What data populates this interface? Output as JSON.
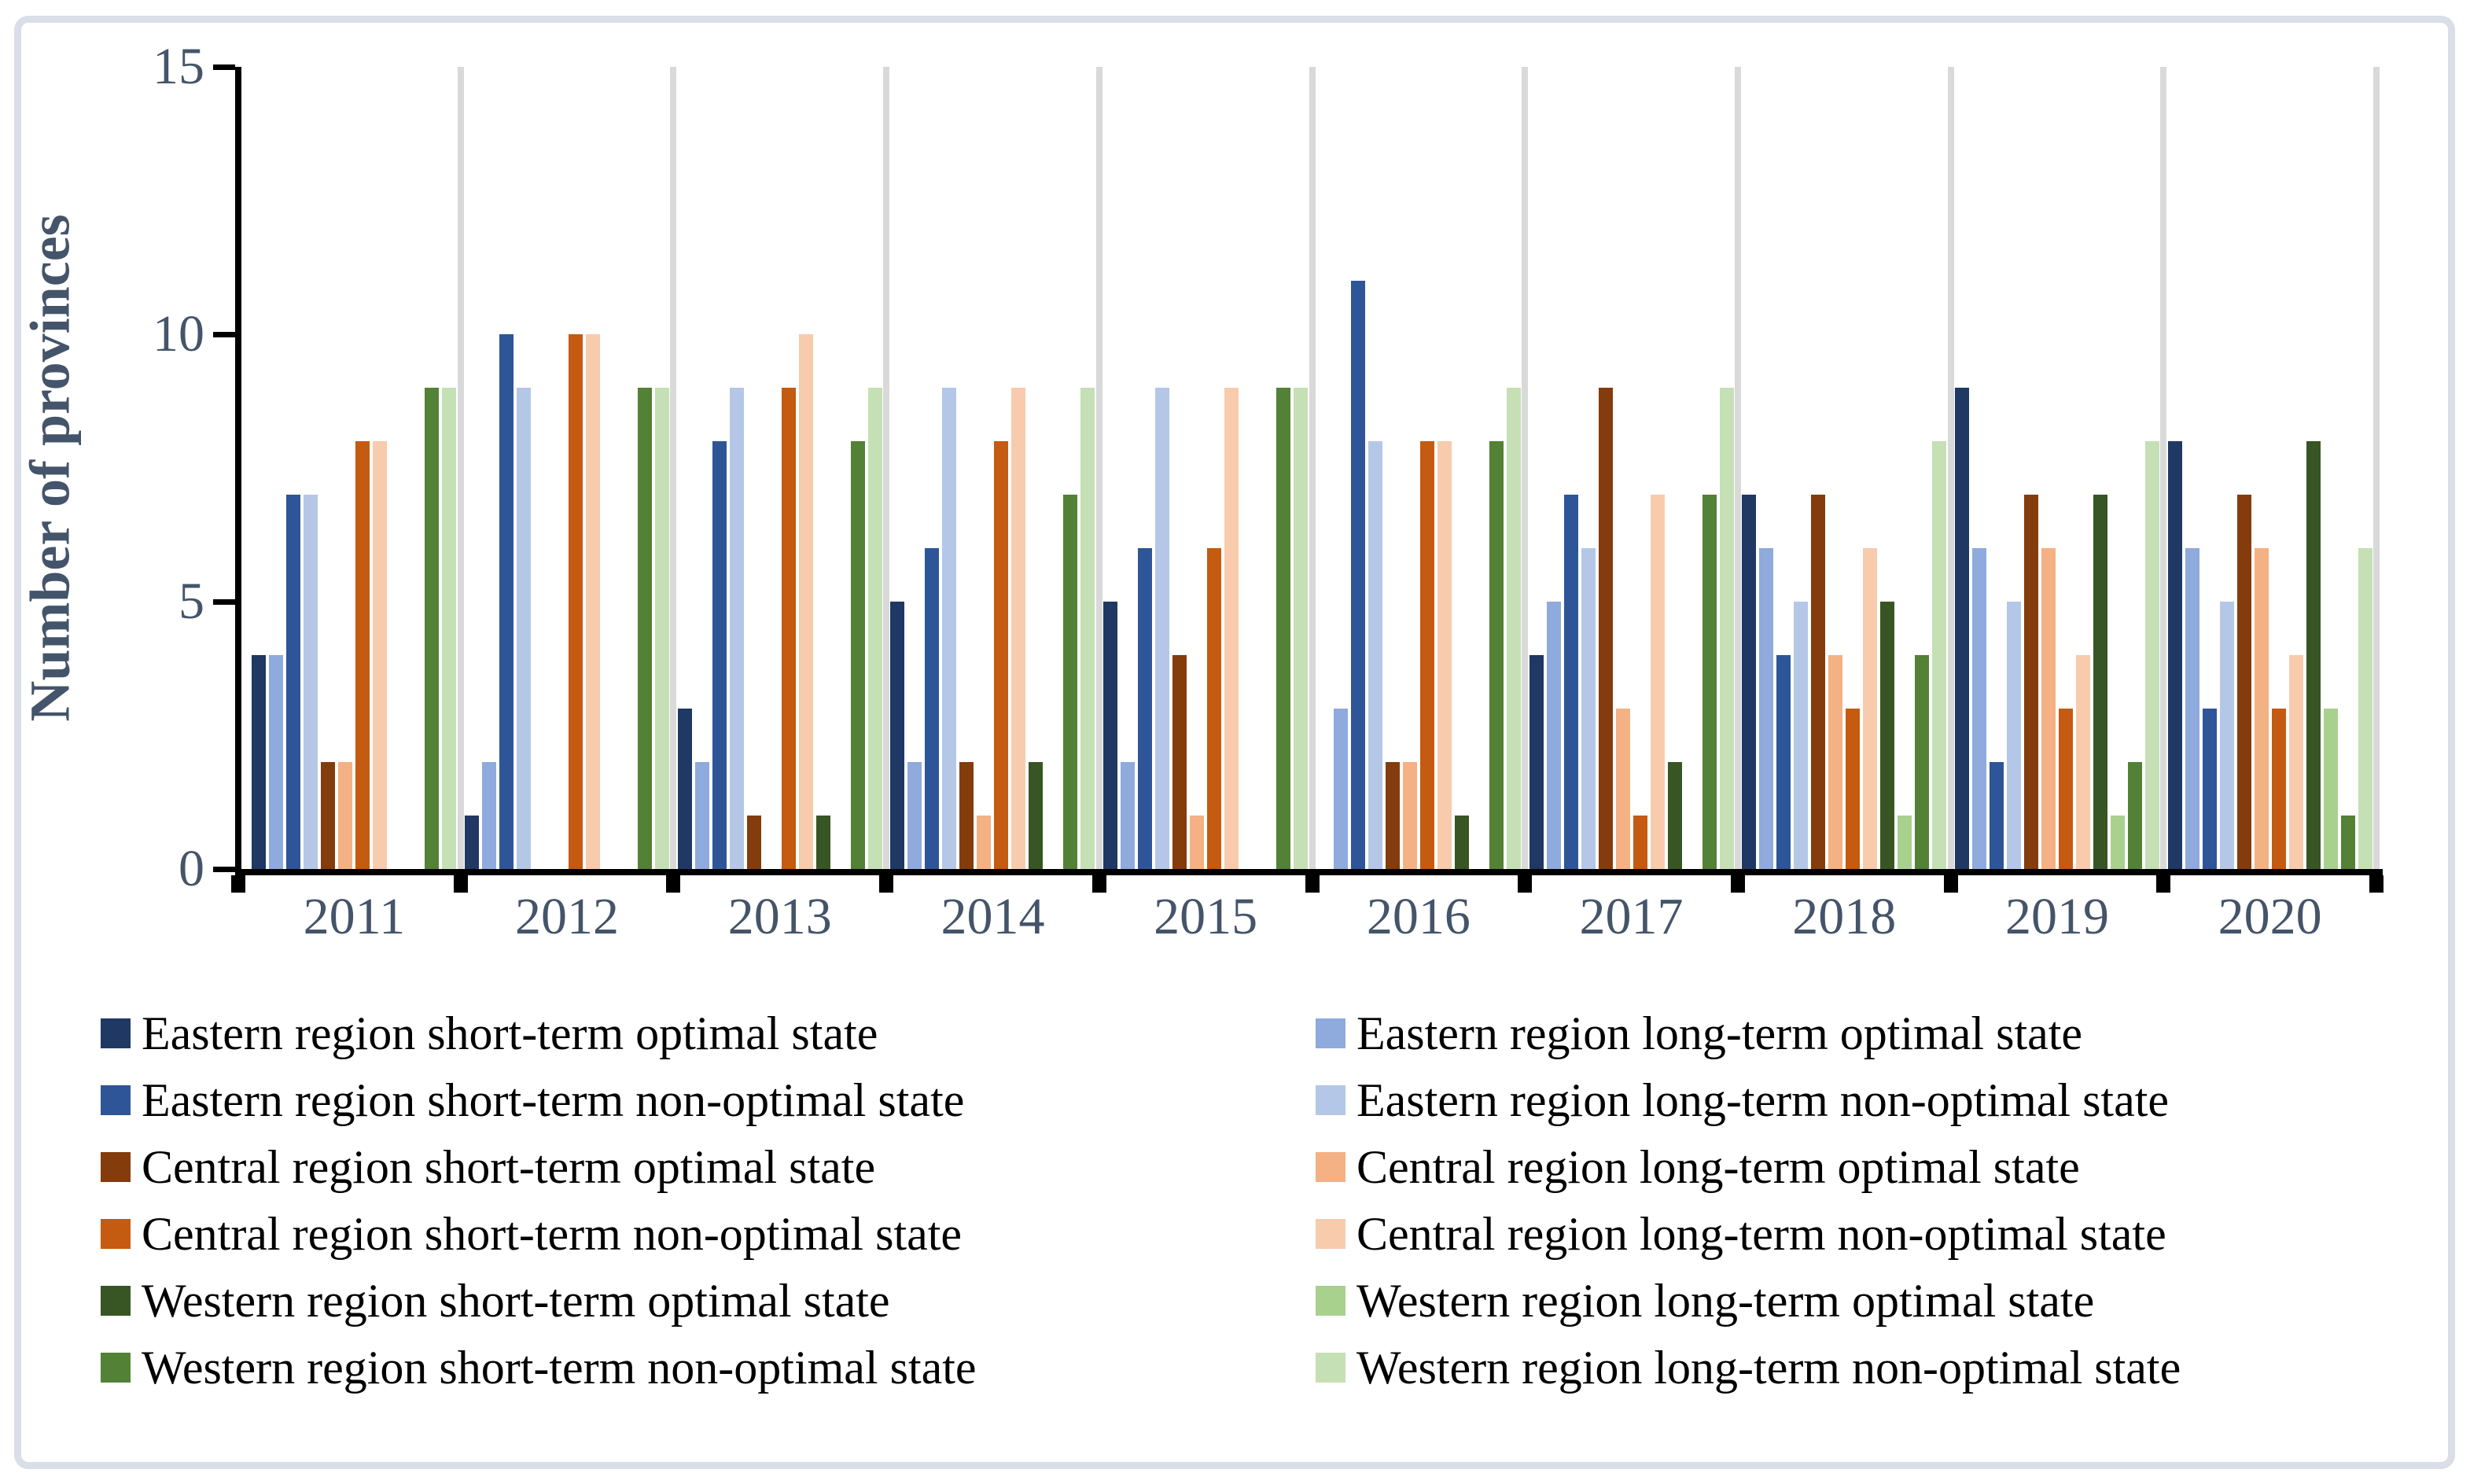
{
  "chart_data": {
    "type": "bar",
    "title": "",
    "ylabel": "Number of provinces",
    "xlabel": "",
    "ylim": [
      0,
      15
    ],
    "yticks": [
      0,
      5,
      10,
      15
    ],
    "grid": "vertical separators between year groups",
    "legend_position": "bottom, two columns",
    "categories": [
      "2011",
      "2012",
      "2013",
      "2014",
      "2015",
      "2016",
      "2017",
      "2018",
      "2019",
      "2020"
    ],
    "series": [
      {
        "name": "Eastern region short-term optimal state",
        "color": "#1F3864",
        "values": [
          4,
          1,
          3,
          5,
          5,
          0,
          4,
          7,
          9,
          8
        ]
      },
      {
        "name": "Eastern region long-term optimal state",
        "color": "#8FAADC",
        "values": [
          4,
          2,
          2,
          2,
          2,
          3,
          5,
          6,
          6,
          6
        ]
      },
      {
        "name": "Eastern region short-term non-optimal state",
        "color": "#2E5597",
        "values": [
          7,
          10,
          8,
          6,
          6,
          11,
          7,
          4,
          2,
          3
        ]
      },
      {
        "name": "Eastern region long-term non-optimal state",
        "color": "#B4C7E7",
        "values": [
          7,
          9,
          9,
          9,
          9,
          8,
          6,
          5,
          5,
          5
        ]
      },
      {
        "name": "Central region short-term optimal state",
        "color": "#843C0C",
        "values": [
          2,
          0,
          1,
          2,
          4,
          2,
          9,
          7,
          7,
          7
        ]
      },
      {
        "name": "Central region long-term optimal state",
        "color": "#F4B183",
        "values": [
          2,
          0,
          0,
          1,
          1,
          2,
          3,
          4,
          6,
          6
        ]
      },
      {
        "name": "Central region short-term non-optimal state",
        "color": "#C55A11",
        "values": [
          8,
          10,
          9,
          8,
          6,
          8,
          1,
          3,
          3,
          3
        ]
      },
      {
        "name": "Central region long-term non-optimal state",
        "color": "#F8CBAD",
        "values": [
          8,
          10,
          10,
          9,
          9,
          8,
          7,
          6,
          4,
          4
        ]
      },
      {
        "name": "Western region short-term optimal state",
        "color": "#375623",
        "values": [
          0,
          0,
          1,
          2,
          0,
          1,
          2,
          5,
          7,
          8
        ]
      },
      {
        "name": "Western region long-term optimal state",
        "color": "#A9D18E",
        "values": [
          0,
          0,
          0,
          0,
          0,
          0,
          0,
          1,
          1,
          3
        ]
      },
      {
        "name": "Western region short-term non-optimal state",
        "color": "#538135",
        "values": [
          9,
          9,
          8,
          7,
          9,
          8,
          7,
          4,
          2,
          1
        ]
      },
      {
        "name": "Western region long-term non-optimal state",
        "color": "#C5E0B4",
        "values": [
          9,
          9,
          9,
          9,
          9,
          9,
          9,
          8,
          8,
          6
        ]
      }
    ],
    "legend_columns": {
      "left": [
        0,
        2,
        4,
        6,
        8,
        10
      ],
      "right": [
        1,
        3,
        5,
        7,
        9,
        11
      ]
    }
  },
  "styles": {
    "axis_text_color": "#44546A",
    "legend_text_color": "#000000",
    "gridline_color": "#D9D9D9",
    "axis_line_color": "#000000",
    "frame_border_color": "#D9DEE9",
    "background": "#FFFFFF"
  }
}
